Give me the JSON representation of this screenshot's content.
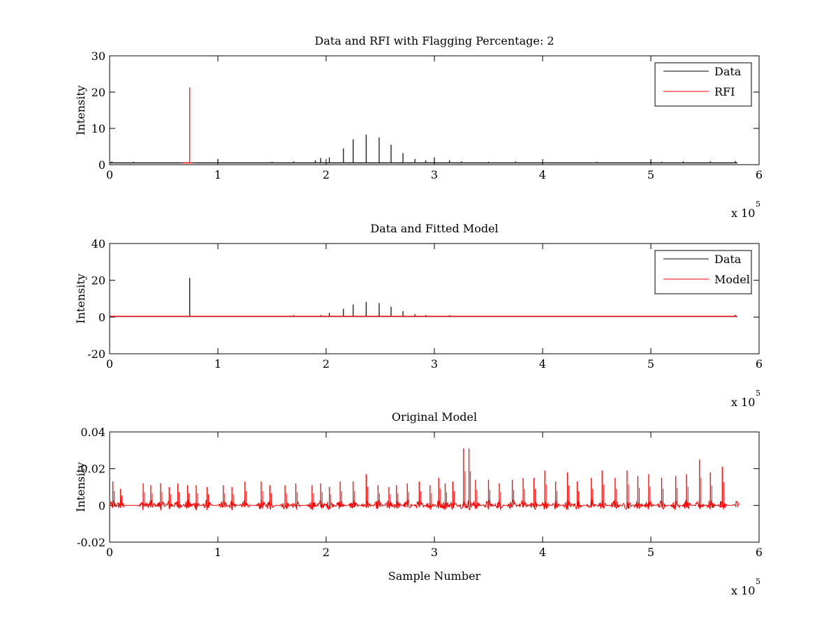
{
  "chart_data": [
    {
      "type": "line",
      "title": "Data and RFI with Flagging Percentage: 2",
      "xlabel": "",
      "ylabel": "Intensity",
      "xlim": [
        0,
        6
      ],
      "ylim": [
        0,
        30
      ],
      "xticks": [
        "0",
        "1",
        "2",
        "3",
        "4",
        "5",
        "6"
      ],
      "yticks": [
        "0",
        "10",
        "20",
        "30"
      ],
      "x_multiplier": "x 10",
      "x_multiplier_exp": "5",
      "legend": {
        "position": "top-right",
        "entries": [
          "Data",
          "RFI"
        ]
      },
      "series": [
        {
          "name": "Data",
          "color": "#000000",
          "baseline": 0.5,
          "spikes": [
            [
              0.02,
              0.9
            ],
            [
              0.22,
              0.8
            ],
            [
              1.0,
              1.5
            ],
            [
              1.5,
              0.8
            ],
            [
              1.7,
              0.9
            ],
            [
              1.9,
              1.2
            ],
            [
              1.95,
              1.8
            ],
            [
              2.03,
              2.0
            ],
            [
              2.16,
              4.5
            ],
            [
              2.25,
              7.0
            ],
            [
              2.37,
              8.3
            ],
            [
              2.49,
              7.5
            ],
            [
              2.6,
              5.5
            ],
            [
              2.71,
              3.2
            ],
            [
              2.82,
              1.6
            ],
            [
              2.92,
              1.2
            ],
            [
              3.0,
              2.0
            ],
            [
              3.14,
              1.2
            ],
            [
              3.25,
              0.9
            ],
            [
              3.5,
              0.8
            ],
            [
              3.75,
              0.9
            ],
            [
              4.0,
              0.8
            ],
            [
              4.5,
              0.8
            ],
            [
              5.0,
              1.2
            ],
            [
              5.1,
              0.8
            ],
            [
              5.3,
              0.9
            ],
            [
              5.55,
              0.9
            ],
            [
              5.78,
              1.0
            ]
          ],
          "x_end": 5.8
        },
        {
          "name": "RFI",
          "color": "#ff0000",
          "baseline": 0.5,
          "spikes": [
            [
              0.74,
              21.3
            ]
          ],
          "x_start": 0.67,
          "x_end": 0.76
        }
      ]
    },
    {
      "type": "line",
      "title": "Data and Fitted Model",
      "xlabel": "",
      "ylabel": "Intensity",
      "xlim": [
        0,
        6
      ],
      "ylim": [
        -20,
        40
      ],
      "xticks": [
        "0",
        "1",
        "2",
        "3",
        "4",
        "5",
        "6"
      ],
      "yticks": [
        "-20",
        "0",
        "20",
        "40"
      ],
      "x_multiplier": "x 10",
      "x_multiplier_exp": "5",
      "legend": {
        "position": "top-right",
        "entries": [
          "Data",
          "Model"
        ]
      },
      "series": [
        {
          "name": "Data",
          "color": "#000000",
          "baseline": 0.3,
          "spikes": [
            [
              0.74,
              21.3
            ],
            [
              1.7,
              1.0
            ],
            [
              1.95,
              1.0
            ],
            [
              2.03,
              2.3
            ],
            [
              2.16,
              4.5
            ],
            [
              2.25,
              6.8
            ],
            [
              2.37,
              8.2
            ],
            [
              2.49,
              7.6
            ],
            [
              2.6,
              5.6
            ],
            [
              2.71,
              3.2
            ],
            [
              2.82,
              1.6
            ],
            [
              2.92,
              1.0
            ],
            [
              3.14,
              1.0
            ],
            [
              5.78,
              1.2
            ]
          ],
          "x_end": 5.8
        },
        {
          "name": "Model",
          "color": "#ff0000",
          "baseline": 0.4,
          "spikes": [],
          "x_start": 0,
          "x_end": 5.8
        }
      ]
    },
    {
      "type": "line",
      "title": "Original Model",
      "xlabel": "Sample Number",
      "ylabel": "Intensity",
      "xlim": [
        0,
        6
      ],
      "ylim": [
        -0.02,
        0.04
      ],
      "xticks": [
        "0",
        "1",
        "2",
        "3",
        "4",
        "5",
        "6"
      ],
      "yticks": [
        "-0.02",
        "0",
        "0.02",
        "0.04"
      ],
      "x_multiplier": "x 10",
      "x_multiplier_exp": "5",
      "legend": null,
      "series": [
        {
          "color": "#ff0000",
          "baseline": 0,
          "noise_amplitude": 0.004,
          "peaks": [
            [
              0.03,
              0.013
            ],
            [
              0.1,
              0.009
            ],
            [
              0.31,
              0.012
            ],
            [
              0.38,
              0.011
            ],
            [
              0.47,
              0.012
            ],
            [
              0.55,
              0.01
            ],
            [
              0.63,
              0.012
            ],
            [
              0.72,
              0.011
            ],
            [
              0.8,
              0.011
            ],
            [
              0.9,
              0.01
            ],
            [
              1.05,
              0.011
            ],
            [
              1.13,
              0.01
            ],
            [
              1.25,
              0.013
            ],
            [
              1.4,
              0.013
            ],
            [
              1.48,
              0.011
            ],
            [
              1.62,
              0.011
            ],
            [
              1.72,
              0.012
            ],
            [
              1.87,
              0.011
            ],
            [
              1.95,
              0.012
            ],
            [
              2.03,
              0.01
            ],
            [
              2.13,
              0.013
            ],
            [
              2.25,
              0.013
            ],
            [
              2.37,
              0.017
            ],
            [
              2.48,
              0.011
            ],
            [
              2.58,
              0.01
            ],
            [
              2.65,
              0.011
            ],
            [
              2.75,
              0.012
            ],
            [
              2.86,
              0.013
            ],
            [
              2.96,
              0.011
            ],
            [
              3.04,
              0.015
            ],
            [
              3.1,
              0.012
            ],
            [
              3.17,
              0.013
            ],
            [
              3.27,
              0.031
            ],
            [
              3.32,
              0.031
            ],
            [
              3.38,
              0.014
            ],
            [
              3.5,
              0.014
            ],
            [
              3.6,
              0.012
            ],
            [
              3.72,
              0.014
            ],
            [
              3.82,
              0.015
            ],
            [
              3.92,
              0.015
            ],
            [
              4.02,
              0.019
            ],
            [
              4.12,
              0.013
            ],
            [
              4.23,
              0.018
            ],
            [
              4.32,
              0.013
            ],
            [
              4.45,
              0.015
            ],
            [
              4.55,
              0.019
            ],
            [
              4.67,
              0.015
            ],
            [
              4.78,
              0.019
            ],
            [
              4.88,
              0.016
            ],
            [
              4.98,
              0.017
            ],
            [
              5.1,
              0.015
            ],
            [
              5.23,
              0.016
            ],
            [
              5.33,
              0.017
            ],
            [
              5.45,
              0.025
            ],
            [
              5.55,
              0.018
            ],
            [
              5.66,
              0.021
            ],
            [
              5.8,
              0.002
            ]
          ],
          "x_end": 5.8
        }
      ]
    }
  ]
}
